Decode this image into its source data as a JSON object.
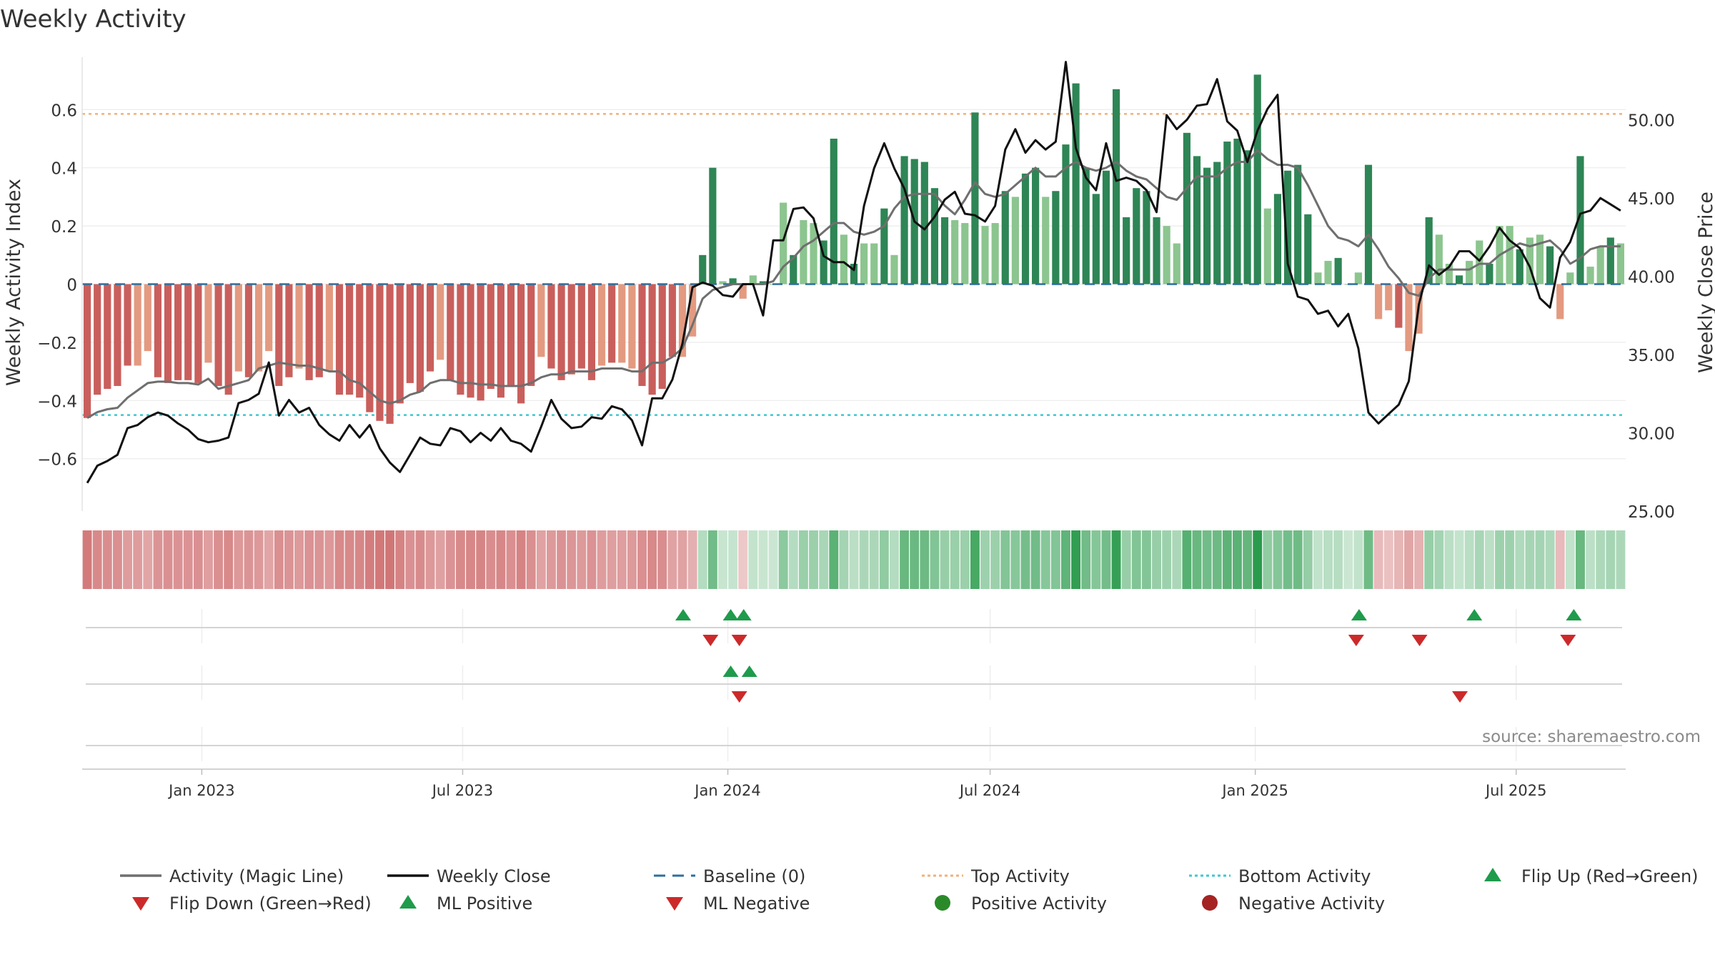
{
  "chart_data": {
    "type": "bar+line",
    "title": "Weekly Activity",
    "ylabel_left": "Weekly Activity Index",
    "ylabel_right": "Weekly Close Price",
    "left_axis": {
      "range": [
        -0.78,
        0.78
      ],
      "ticks": [
        0.6,
        0.4,
        0.2,
        0,
        -0.2,
        -0.4,
        -0.6
      ],
      "tick_labels": [
        "0.6",
        "0.4",
        "0.2",
        "0",
        "−0.2",
        "−0.4",
        "−0.6"
      ]
    },
    "right_axis": {
      "range": [
        25.0,
        54.0
      ],
      "ticks": [
        50,
        45,
        40,
        35,
        30,
        25
      ],
      "tick_labels": [
        "50.00",
        "45.00",
        "40.00",
        "35.00",
        "30.00",
        "25.00"
      ]
    },
    "x_axis": {
      "start": "2022-10-10",
      "end": "2025-09-15",
      "tick_dates": [
        "2023-01-01",
        "2023-07-01",
        "2024-01-01",
        "2024-07-01",
        "2025-01-01",
        "2025-07-01"
      ],
      "tick_labels": [
        "Jan 2023",
        "Jul 2023",
        "Jan 2024",
        "Jul 2024",
        "Jan 2025",
        "Jul 2025"
      ]
    },
    "reference_lines": {
      "baseline": 0,
      "top_activity": 0.585,
      "bottom_activity": -0.45
    },
    "activity_values": [
      -0.46,
      -0.38,
      -0.36,
      -0.35,
      -0.28,
      -0.28,
      -0.23,
      -0.32,
      -0.34,
      -0.33,
      -0.33,
      -0.34,
      -0.27,
      -0.35,
      -0.38,
      -0.3,
      -0.32,
      -0.3,
      -0.23,
      -0.35,
      -0.32,
      -0.29,
      -0.33,
      -0.32,
      -0.3,
      -0.38,
      -0.38,
      -0.39,
      -0.44,
      -0.47,
      -0.48,
      -0.41,
      -0.34,
      -0.37,
      -0.3,
      -0.26,
      -0.33,
      -0.38,
      -0.39,
      -0.4,
      -0.36,
      -0.39,
      -0.35,
      -0.41,
      -0.35,
      -0.25,
      -0.29,
      -0.33,
      -0.31,
      -0.29,
      -0.33,
      -0.28,
      -0.27,
      -0.27,
      -0.29,
      -0.35,
      -0.38,
      -0.36,
      -0.25,
      -0.25,
      -0.18,
      0.1,
      0.4,
      0.01,
      0.02,
      -0.05,
      0.03,
      0.01,
      0.0,
      0.28,
      0.1,
      0.22,
      0.21,
      0.15,
      0.5,
      0.17,
      0.07,
      0.14,
      0.14,
      0.26,
      0.1,
      0.44,
      0.43,
      0.42,
      0.33,
      0.23,
      0.22,
      0.21,
      0.59,
      0.2,
      0.21,
      0.32,
      0.3,
      0.38,
      0.4,
      0.3,
      0.32,
      0.48,
      0.69,
      0.4,
      0.31,
      0.39,
      0.67,
      0.23,
      0.33,
      0.32,
      0.23,
      0.2,
      0.14,
      0.52,
      0.44,
      0.4,
      0.42,
      0.49,
      0.5,
      0.46,
      0.72,
      0.26,
      0.31,
      0.39,
      0.41,
      0.24,
      0.04,
      0.08,
      0.09,
      0.0,
      0.04,
      0.41,
      -0.12,
      -0.09,
      -0.15,
      -0.23,
      -0.17,
      0.23,
      0.17,
      0.07,
      0.03,
      0.08,
      0.15,
      0.07,
      0.2,
      0.2,
      0.12,
      0.16,
      0.17,
      0.13,
      -0.12,
      0.04,
      0.44,
      0.06,
      0.13,
      0.16,
      0.14
    ],
    "magic_line_values": [
      -0.46,
      -0.44,
      -0.43,
      -0.425,
      -0.39,
      -0.365,
      -0.34,
      -0.335,
      -0.335,
      -0.34,
      -0.34,
      -0.345,
      -0.325,
      -0.36,
      -0.35,
      -0.34,
      -0.33,
      -0.29,
      -0.28,
      -0.27,
      -0.275,
      -0.28,
      -0.28,
      -0.29,
      -0.3,
      -0.3,
      -0.33,
      -0.34,
      -0.37,
      -0.4,
      -0.41,
      -0.4,
      -0.38,
      -0.37,
      -0.34,
      -0.33,
      -0.33,
      -0.34,
      -0.34,
      -0.345,
      -0.345,
      -0.35,
      -0.35,
      -0.35,
      -0.34,
      -0.32,
      -0.31,
      -0.31,
      -0.3,
      -0.3,
      -0.3,
      -0.29,
      -0.29,
      -0.29,
      -0.3,
      -0.3,
      -0.27,
      -0.27,
      -0.25,
      -0.22,
      -0.14,
      -0.05,
      -0.02,
      -0.01,
      0.0,
      0.0,
      0.0,
      0.0,
      0.01,
      0.06,
      0.09,
      0.13,
      0.15,
      0.18,
      0.21,
      0.21,
      0.18,
      0.17,
      0.18,
      0.2,
      0.26,
      0.3,
      0.31,
      0.31,
      0.31,
      0.27,
      0.24,
      0.29,
      0.35,
      0.31,
      0.3,
      0.31,
      0.34,
      0.37,
      0.4,
      0.37,
      0.37,
      0.4,
      0.42,
      0.4,
      0.39,
      0.4,
      0.42,
      0.39,
      0.37,
      0.36,
      0.33,
      0.3,
      0.29,
      0.33,
      0.37,
      0.37,
      0.37,
      0.4,
      0.42,
      0.42,
      0.46,
      0.43,
      0.41,
      0.41,
      0.4,
      0.34,
      0.27,
      0.2,
      0.16,
      0.15,
      0.13,
      0.17,
      0.12,
      0.06,
      0.02,
      -0.03,
      -0.04,
      0.02,
      0.05,
      0.05,
      0.05,
      0.05,
      0.07,
      0.07,
      0.1,
      0.12,
      0.14,
      0.13,
      0.14,
      0.15,
      0.12,
      0.07,
      0.09,
      0.12,
      0.13,
      0.13,
      0.13
    ],
    "close_values": [
      26.8,
      27.9,
      28.2,
      28.6,
      30.3,
      30.5,
      31.0,
      31.3,
      31.1,
      30.6,
      30.2,
      29.6,
      29.4,
      29.5,
      29.7,
      31.9,
      32.1,
      32.5,
      34.5,
      31.1,
      32.1,
      31.3,
      31.6,
      30.5,
      29.9,
      29.5,
      30.5,
      29.7,
      30.5,
      29.0,
      28.1,
      27.5,
      28.6,
      29.7,
      29.3,
      29.2,
      30.3,
      30.1,
      29.4,
      30.0,
      29.5,
      30.3,
      29.5,
      29.3,
      28.8,
      30.4,
      32.1,
      30.9,
      30.3,
      30.4,
      31.0,
      30.9,
      31.7,
      31.5,
      30.8,
      29.2,
      32.2,
      32.2,
      33.4,
      35.7,
      39.3,
      39.6,
      39.4,
      38.8,
      38.7,
      39.5,
      39.5,
      37.5,
      42.3,
      42.3,
      44.3,
      44.4,
      43.7,
      41.3,
      40.9,
      40.9,
      40.4,
      44.5,
      46.9,
      48.5,
      46.9,
      45.6,
      43.5,
      43.0,
      43.8,
      44.9,
      45.4,
      44.0,
      43.9,
      43.5,
      44.5,
      48.1,
      49.4,
      47.9,
      48.7,
      48.1,
      48.6,
      53.7,
      48.2,
      46.3,
      45.5,
      48.5,
      46.1,
      46.3,
      46.1,
      45.5,
      44.1,
      50.3,
      49.4,
      50.0,
      50.9,
      51.0,
      52.6,
      49.9,
      49.3,
      47.3,
      49.3,
      50.7,
      51.6,
      40.8,
      38.7,
      38.5,
      37.6,
      37.8,
      36.8,
      37.6,
      35.4,
      31.3,
      30.6,
      31.2,
      31.8,
      33.3,
      38.2,
      40.7,
      40.1,
      40.6,
      41.6,
      41.6,
      41.0,
      41.9,
      43.1,
      42.3,
      41.8,
      40.6,
      38.6,
      38.0,
      41.2,
      42.2,
      44.0,
      44.2,
      45.0,
      44.6,
      44.2
    ],
    "heat_strip": "tile row under the bars, one tile per week coloured by activity (red = negative, green = positive)",
    "flip_rows": [
      {
        "row": "Flip markers (Flip Up / Flip Down)",
        "flip_up_dates": [
          "2023-12-01",
          "2024-01-03",
          "2024-01-12",
          "2025-03-14",
          "2025-06-02",
          "2025-08-10"
        ],
        "flip_down_dates": [
          "2023-12-20",
          "2024-01-09",
          "2025-03-12",
          "2025-04-25",
          "2025-08-06"
        ]
      },
      {
        "row": "Magic Line markers (ML Positive / ML Negative)",
        "flip_up_dates": [
          "2024-01-03",
          "2024-01-16"
        ],
        "flip_down_dates": [
          "2024-01-09",
          "2025-05-23"
        ]
      },
      {
        "row": "Activity markers (Positive / Negative)",
        "flip_up_dates": [],
        "flip_down_dates": []
      }
    ],
    "colors": {
      "neg_light": "#e39a80",
      "neg_dark": "#c95f5c",
      "pos_light": "#8cc58f",
      "pos_dark": "#2e8555",
      "magic_line": "#6f6f6f",
      "close_line": "#111111",
      "baseline": "#2d6f9e",
      "top_line": "#f0b07a",
      "bottom_line": "#3cc8cf",
      "flip_up": "#1f9b4c",
      "flip_down": "#cc2a2a",
      "pos_dot": "#2a8a2a",
      "neg_dot": "#a52323"
    },
    "source": "source: sharemaestro.com",
    "legend": [
      {
        "label": "Activity (Magic Line)",
        "kind": "line",
        "color": "#6f6f6f"
      },
      {
        "label": "Weekly Close",
        "kind": "line",
        "color": "#111111"
      },
      {
        "label": "Baseline (0)",
        "kind": "dash",
        "color": "#2d6f9e"
      },
      {
        "label": "Top Activity",
        "kind": "dot-line",
        "color": "#f0b07a"
      },
      {
        "label": "Bottom Activity",
        "kind": "dot-line",
        "color": "#3cc8cf"
      },
      {
        "label": "Flip Up (Red→Green)",
        "kind": "tri-up",
        "color": "#1f9b4c"
      },
      {
        "label": "Flip Down (Green→Red)",
        "kind": "tri-down",
        "color": "#cc2a2a"
      },
      {
        "label": "ML Positive",
        "kind": "tri-up",
        "color": "#1f9b4c"
      },
      {
        "label": "ML Negative",
        "kind": "tri-down",
        "color": "#cc2a2a"
      },
      {
        "label": "Positive Activity",
        "kind": "circle",
        "color": "#2a8a2a"
      },
      {
        "label": "Negative Activity",
        "kind": "circle",
        "color": "#a52323"
      }
    ]
  }
}
